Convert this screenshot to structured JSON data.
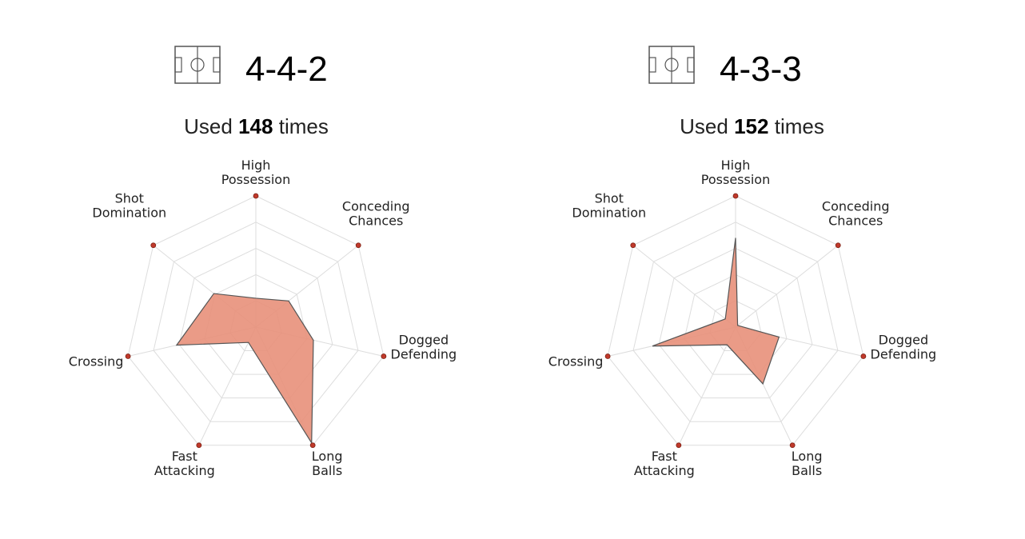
{
  "chart_data": [
    {
      "type": "radar",
      "formation": "4-4-2",
      "usage_prefix": "Used",
      "usage_count": "148",
      "usage_suffix": "times",
      "axes": [
        [
          "High",
          "Possession"
        ],
        [
          "Conceding",
          "Chances"
        ],
        [
          "Dogged",
          "Defending"
        ],
        [
          "Long",
          "Balls"
        ],
        [
          "Fast",
          "Attacking"
        ],
        [
          "Crossing"
        ],
        [
          "Shot",
          "Domination"
        ]
      ],
      "values": [
        0.22,
        0.32,
        0.45,
        0.98,
        0.13,
        0.62,
        0.41
      ],
      "range": [
        0,
        1
      ],
      "fill_color": "#e8907a",
      "line_color": "#555555",
      "marker_color": "#c0392b",
      "grid_color": "#dddddd"
    },
    {
      "type": "radar",
      "formation": "4-3-3",
      "usage_prefix": "Used",
      "usage_count": "152",
      "usage_suffix": "times",
      "axes": [
        [
          "High",
          "Possession"
        ],
        [
          "Conceding",
          "Chances"
        ],
        [
          "Dogged",
          "Defending"
        ],
        [
          "Long",
          "Balls"
        ],
        [
          "Fast",
          "Attacking"
        ],
        [
          "Crossing"
        ],
        [
          "Shot",
          "Domination"
        ]
      ],
      "values": [
        0.68,
        0.02,
        0.34,
        0.48,
        0.15,
        0.65,
        0.1
      ],
      "range": [
        0,
        1
      ],
      "fill_color": "#e8907a",
      "line_color": "#555555",
      "marker_color": "#c0392b",
      "grid_color": "#dddddd"
    }
  ]
}
